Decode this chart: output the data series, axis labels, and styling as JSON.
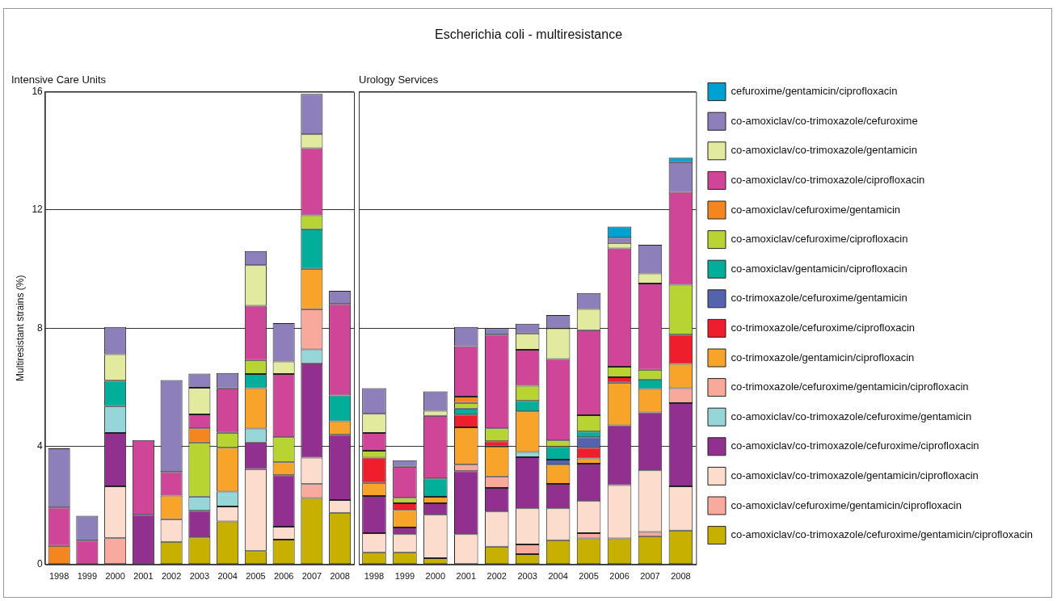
{
  "chart_data": [
    {
      "type": "bar",
      "subtitle": "Intensive Care Units",
      "ylabel": "Multiresistant strains (%)",
      "categories": [
        "1998",
        "1999",
        "2000",
        "2001",
        "2002",
        "2003",
        "2004",
        "2005",
        "2006",
        "2007",
        "2008"
      ],
      "stacked": true,
      "ylim": [
        0,
        16
      ],
      "yticks": [
        0,
        4,
        8,
        12,
        16
      ],
      "grid": "y",
      "series": [
        {
          "color": "#c8b000",
          "values": [
            null,
            null,
            null,
            null,
            0.77,
            0.92,
            1.46,
            0.45,
            0.84,
            2.25,
            1.75
          ]
        },
        {
          "color": "#f8aa9e",
          "values": [
            null,
            null,
            0.89,
            null,
            null,
            null,
            null,
            null,
            null,
            0.47,
            null
          ]
        },
        {
          "color": "#fbdccd",
          "values": [
            null,
            null,
            1.76,
            null,
            0.76,
            null,
            0.5,
            2.78,
            0.44,
            0.9,
            0.43
          ]
        },
        {
          "color": "#92308f",
          "values": [
            null,
            null,
            1.8,
            1.68,
            null,
            0.9,
            null,
            0.9,
            1.74,
            3.19,
            2.21
          ]
        },
        {
          "color": "#96d6d8",
          "values": [
            null,
            null,
            0.91,
            null,
            null,
            0.48,
            0.51,
            0.47,
            null,
            0.47,
            null
          ]
        },
        {
          "color": "#f8a99c",
          "values": [
            null,
            null,
            null,
            null,
            null,
            null,
            null,
            null,
            null,
            1.36,
            null
          ]
        },
        {
          "color": "#f8a42a",
          "values": [
            null,
            null,
            null,
            null,
            0.8,
            null,
            1.48,
            1.37,
            0.44,
            1.37,
            0.46
          ]
        },
        {
          "color": "#00ae9a",
          "values": [
            null,
            null,
            0.86,
            null,
            null,
            null,
            null,
            0.48,
            null,
            1.34,
            0.87
          ]
        },
        {
          "color": "#b8d433",
          "values": [
            null,
            null,
            null,
            null,
            null,
            1.83,
            0.51,
            0.47,
            0.85,
            0.47,
            null
          ]
        },
        {
          "color": "#f5861f",
          "values": [
            0.63,
            null,
            null,
            null,
            null,
            0.48,
            null,
            null,
            null,
            null,
            null
          ]
        },
        {
          "color": "#cf4597",
          "values": [
            1.3,
            0.81,
            null,
            2.53,
            0.8,
            0.47,
            1.5,
            1.84,
            2.14,
            2.27,
            3.1
          ]
        },
        {
          "color": "#e2ea9f",
          "values": [
            null,
            null,
            0.9,
            null,
            null,
            0.9,
            null,
            1.37,
            0.42,
            0.47,
            null
          ]
        },
        {
          "color": "#8c7fba",
          "values": [
            2.0,
            0.84,
            0.92,
            null,
            3.11,
            0.48,
            0.52,
            0.48,
            1.3,
            1.37,
            0.44
          ]
        }
      ]
    },
    {
      "type": "bar",
      "title": "Escherichia coli - multiresistance",
      "subtitle": "Urology Services",
      "categories": [
        "1998",
        "1999",
        "2000",
        "2001",
        "2002",
        "2003",
        "2004",
        "2005",
        "2006",
        "2007",
        "2008"
      ],
      "stacked": true,
      "ylim": [
        0,
        16
      ],
      "yticks": [
        0,
        4,
        8,
        12,
        16
      ],
      "grid": "y",
      "tick_labels": "x",
      "legend": "right",
      "series": [
        {
          "name": "co-amoxiclav/co-trimoxazole/cefuroxime/gentamicin/ciprofloxacin",
          "color": "#c8b000",
          "values": [
            0.41,
            0.41,
            0.21,
            null,
            0.6,
            0.35,
            0.82,
            0.88,
            0.88,
            0.96,
            1.15
          ]
        },
        {
          "name": "co-amoxiclav/cefuroxime/gentamicin/ciprofloxacin",
          "color": "#f8aa9e",
          "values": [
            null,
            null,
            null,
            null,
            null,
            0.33,
            null,
            0.18,
            null,
            0.14,
            null
          ]
        },
        {
          "name": "co-amoxiclav/co-trimoxazole/gentamicin/ciprofloxacin",
          "color": "#fbdccd",
          "values": [
            0.65,
            0.62,
            1.47,
            1.03,
            1.19,
            1.22,
            1.08,
            1.09,
            1.81,
            2.09,
            1.5
          ]
        },
        {
          "name": "co-amoxiclav/co-trimoxazole/cefuroxime/ciprofloxacin",
          "color": "#92308f",
          "values": [
            1.26,
            0.22,
            0.39,
            2.13,
            0.8,
            1.73,
            0.83,
            1.26,
            2.02,
            1.96,
            2.81
          ]
        },
        {
          "name": "co-amoxiclav/co-trimoxazole/cefuroxime/gentamicin",
          "color": "#96d6d8",
          "values": [
            null,
            null,
            null,
            null,
            null,
            0.18,
            null,
            null,
            null,
            null,
            null
          ]
        },
        {
          "name": "co-trimoxazole/cefuroxime/gentamicin/ciprofloxacin",
          "color": "#f8a99c",
          "values": [
            null,
            null,
            null,
            0.22,
            0.39,
            null,
            null,
            null,
            null,
            null,
            0.51
          ]
        },
        {
          "name": "co-trimoxazole/gentamicin/ciprofloxacin",
          "color": "#f8a42a",
          "values": [
            0.44,
            0.6,
            0.22,
            1.26,
            1.01,
            1.37,
            0.65,
            0.18,
            1.44,
            0.79,
            0.82
          ]
        },
        {
          "name": "co-trimoxazole/cefuroxime/ciprofloxacin",
          "color": "#ee1e2c",
          "values": [
            0.86,
            0.22,
            null,
            0.43,
            0.18,
            null,
            null,
            0.36,
            0.19,
            null,
            0.99
          ]
        },
        {
          "name": "co-trimoxazole/cefuroxime/gentamicin",
          "color": "#5463ad",
          "values": [
            null,
            null,
            null,
            null,
            null,
            null,
            0.17,
            0.36,
            null,
            null,
            null
          ]
        },
        {
          "name": "co-amoxiclav/gentamicin/ciprofloxacin",
          "color": "#00ae9a",
          "values": [
            null,
            null,
            0.62,
            0.21,
            null,
            0.36,
            0.43,
            0.19,
            null,
            0.32,
            null
          ]
        },
        {
          "name": "co-amoxiclav/cefuroxime/ciprofloxacin",
          "color": "#b8d433",
          "values": [
            0.23,
            0.19,
            null,
            0.19,
            0.44,
            0.51,
            0.22,
            0.55,
            0.35,
            0.33,
            1.69
          ]
        },
        {
          "name": "co-amoxiclav/cefuroxime/gentamicin",
          "color": "#f5861f",
          "values": [
            null,
            null,
            null,
            0.21,
            null,
            null,
            null,
            null,
            null,
            null,
            null
          ]
        },
        {
          "name": "co-amoxiclav/co-trimoxazole/ciprofloxacin",
          "color": "#cf4597",
          "values": [
            0.6,
            1.05,
            2.12,
            1.71,
            3.17,
            1.22,
            2.75,
            2.88,
            4.01,
            2.92,
            3.14
          ]
        },
        {
          "name": "co-amoxiclav/co-trimoxazole/gentamicin",
          "color": "#e2ea9f",
          "values": [
            0.65,
            null,
            0.17,
            null,
            null,
            0.55,
            1.04,
            0.72,
            0.18,
            0.34,
            null
          ]
        },
        {
          "name": "co-amoxiclav/co-trimoxazole/cefuroxime",
          "color": "#8c7fba",
          "values": [
            0.87,
            0.22,
            0.66,
            0.65,
            0.22,
            0.33,
            0.45,
            0.54,
            0.18,
            0.97,
            1.01
          ]
        },
        {
          "name": "cefuroxime/gentamicin/ciprofloxacin",
          "color": "#00a0d2",
          "values": [
            null,
            null,
            null,
            null,
            null,
            null,
            null,
            null,
            0.38,
            null,
            0.15
          ]
        }
      ]
    }
  ]
}
